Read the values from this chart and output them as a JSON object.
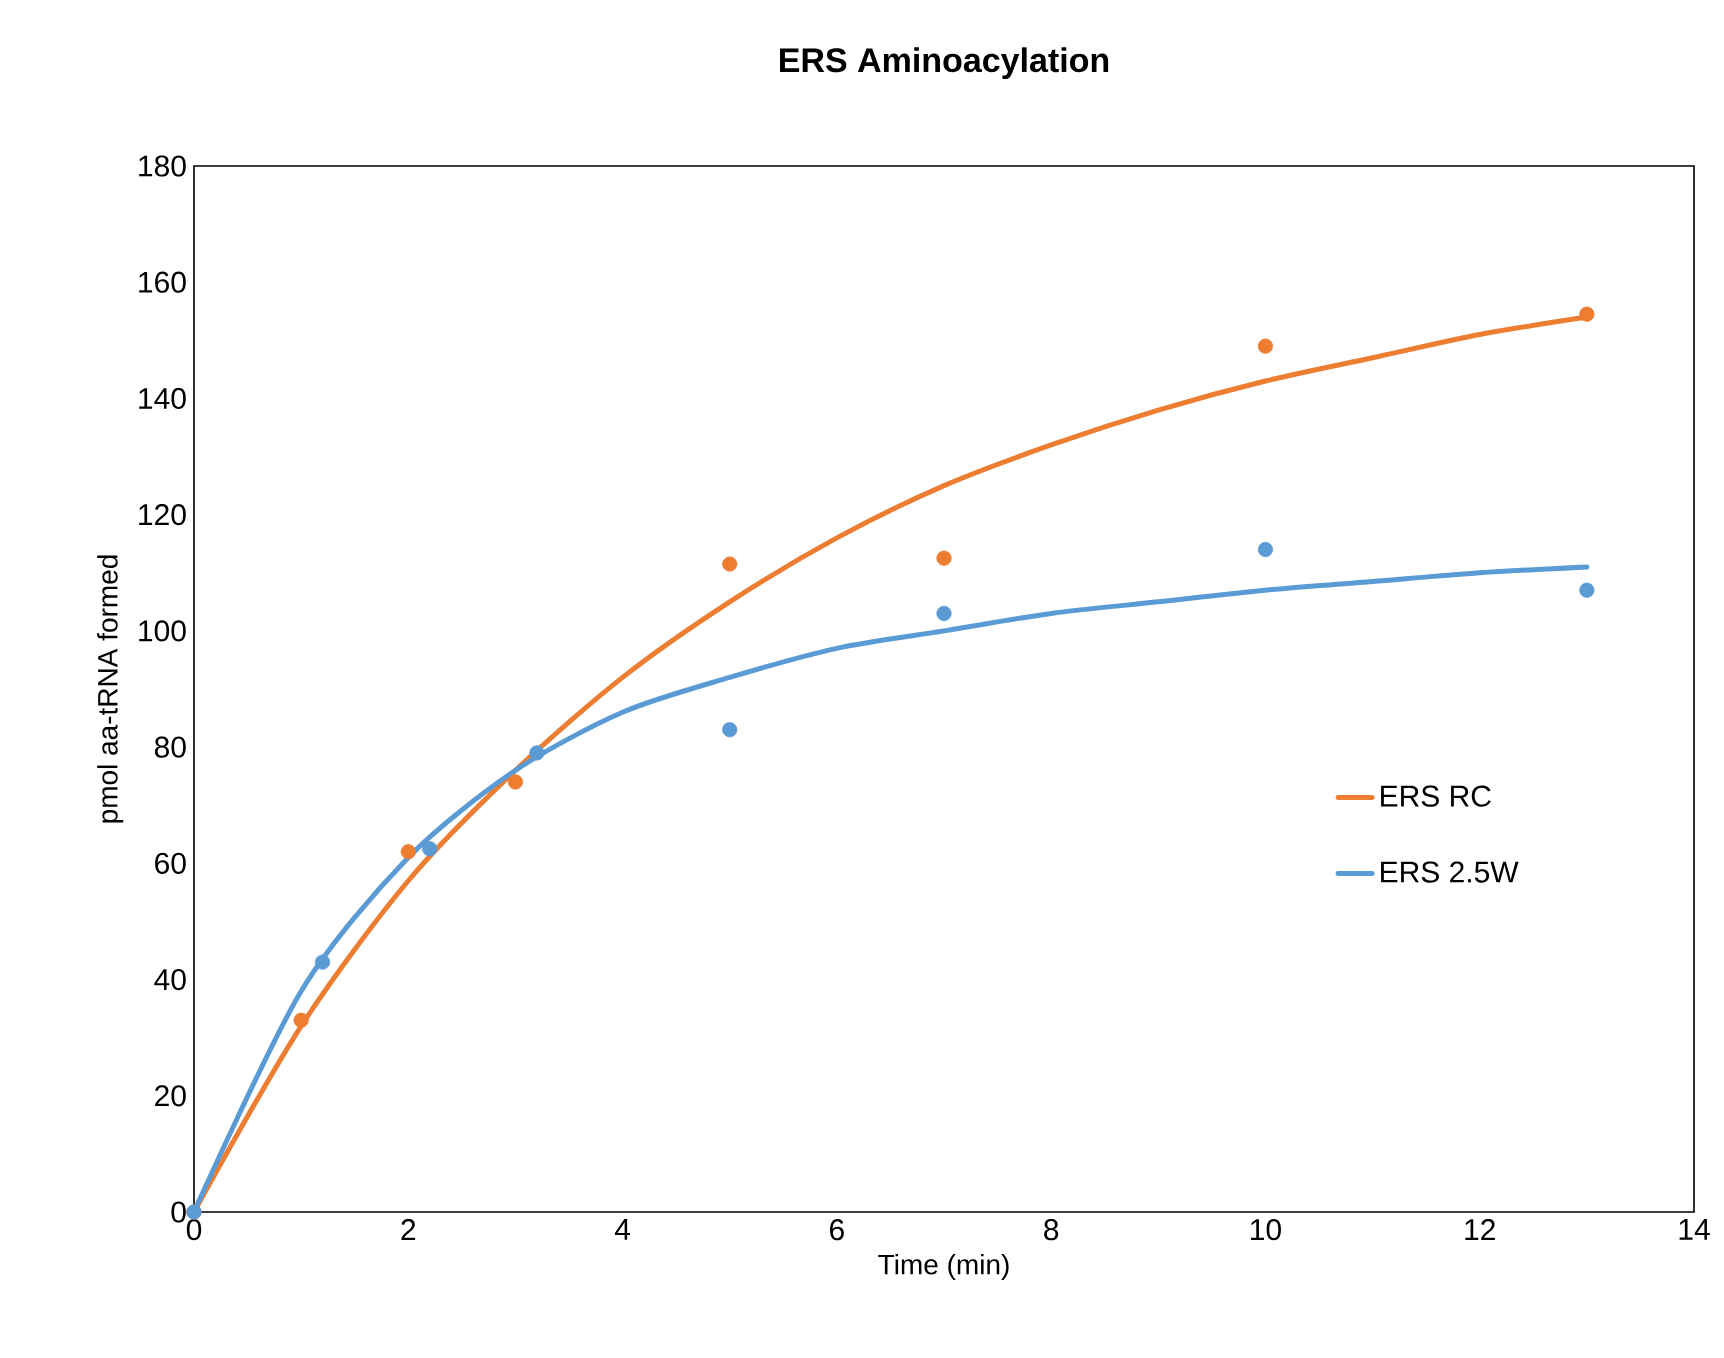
{
  "chart_data": {
    "type": "scatter",
    "title": "ERS Aminoacylation",
    "xlabel": "Time (min)",
    "ylabel": "pmol aa-tRNA formed",
    "xlim": [
      0,
      14
    ],
    "xticks": [
      0,
      2,
      4,
      6,
      8,
      10,
      12,
      14
    ],
    "ylim": [
      0,
      180
    ],
    "yticks": [
      0,
      20,
      40,
      60,
      80,
      100,
      120,
      140,
      160,
      180
    ],
    "grid": false,
    "legend": "right",
    "series": [
      {
        "marker": "circle",
        "color": "#ed7d31",
        "x": [
          0,
          1,
          2,
          3,
          5,
          7,
          10,
          13
        ],
        "values": [
          0,
          33,
          62,
          74,
          111.5,
          112.5,
          149,
          154.5
        ]
      },
      {
        "marker": "circle",
        "color": "#5b9bd5",
        "x": [
          0,
          1.2,
          2.2,
          3.2,
          5,
          7,
          10,
          13
        ],
        "values": [
          0,
          43,
          62.5,
          79,
          83,
          103,
          114,
          107
        ]
      },
      {
        "type": "line",
        "name": "ERS RC",
        "marker": "none",
        "color": "#ed7d31",
        "x": [
          0,
          1,
          2,
          3,
          4,
          5,
          6,
          7,
          8,
          9,
          10,
          11,
          12,
          13
        ],
        "values": [
          0,
          32,
          57,
          76,
          92,
          105,
          116,
          125,
          132,
          138,
          143,
          147,
          151,
          154
        ]
      },
      {
        "type": "line",
        "name": "ERS 2.5W",
        "marker": "none",
        "color": "#5b9bd5",
        "x": [
          0,
          1,
          2,
          3,
          4,
          5,
          6,
          7,
          8,
          9,
          10,
          11,
          12,
          13
        ],
        "values": [
          0,
          38,
          61,
          76,
          86,
          92,
          97,
          100,
          103,
          105,
          107,
          108.5,
          110,
          111
        ]
      }
    ]
  }
}
